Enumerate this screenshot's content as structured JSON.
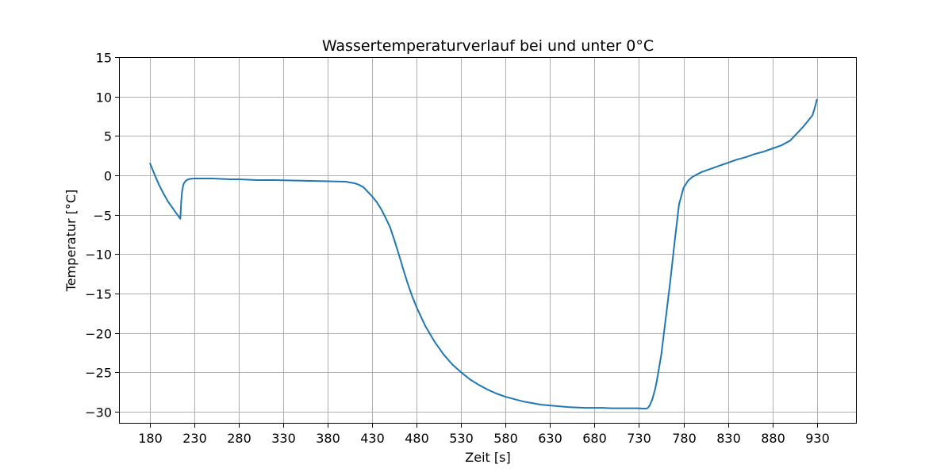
{
  "chart_data": {
    "type": "line",
    "title": "Wassertemperaturverlauf bei und unter 0°C",
    "xlabel": "Zeit [s]",
    "ylabel": "Temperatur [°C]",
    "xlim": [
      145,
      975
    ],
    "ylim": [
      -31.5,
      15
    ],
    "xticks": [
      180,
      230,
      280,
      330,
      380,
      430,
      480,
      530,
      580,
      630,
      680,
      730,
      780,
      830,
      880,
      930
    ],
    "yticks": [
      15,
      10,
      5,
      0,
      -5,
      -10,
      -15,
      -20,
      -25,
      -30
    ],
    "ytick_labels": [
      "15",
      "10",
      "5",
      "0",
      "−5",
      "−10",
      "−15",
      "−20",
      "−25",
      "−30"
    ],
    "grid": true,
    "series_color": "#1f77b4",
    "series": [
      {
        "x": [
          180,
          185,
          190,
          195,
          200,
          205,
          210,
          214,
          215,
          216,
          217,
          218,
          220,
          222,
          225,
          230,
          240,
          250,
          260,
          270,
          280,
          290,
          300,
          320,
          340,
          360,
          380,
          400,
          405,
          410,
          415,
          420,
          425,
          430,
          435,
          440,
          445,
          450,
          455,
          460,
          465,
          470,
          475,
          480,
          490,
          500,
          510,
          520,
          530,
          540,
          550,
          560,
          570,
          580,
          590,
          600,
          610,
          620,
          630,
          640,
          650,
          660,
          670,
          680,
          690,
          700,
          710,
          720,
          730,
          735,
          738,
          740,
          742,
          745,
          748,
          750,
          755,
          760,
          765,
          770,
          775,
          780,
          785,
          790,
          800,
          810,
          820,
          830,
          840,
          850,
          860,
          870,
          880,
          890,
          900,
          905,
          910,
          915,
          920,
          925,
          927,
          929,
          930
        ],
        "y": [
          1.5,
          0.1,
          -1.2,
          -2.3,
          -3.3,
          -4.1,
          -4.9,
          -5.5,
          -3.3,
          -2.0,
          -1.4,
          -1.0,
          -0.7,
          -0.55,
          -0.45,
          -0.4,
          -0.4,
          -0.4,
          -0.45,
          -0.5,
          -0.5,
          -0.55,
          -0.6,
          -0.6,
          -0.65,
          -0.7,
          -0.75,
          -0.8,
          -0.9,
          -1.0,
          -1.2,
          -1.5,
          -2.1,
          -2.7,
          -3.4,
          -4.3,
          -5.4,
          -6.6,
          -8.3,
          -10.1,
          -12.0,
          -13.8,
          -15.4,
          -16.8,
          -19.2,
          -21.1,
          -22.7,
          -24.0,
          -25.0,
          -25.9,
          -26.6,
          -27.2,
          -27.7,
          -28.1,
          -28.4,
          -28.7,
          -28.9,
          -29.1,
          -29.2,
          -29.3,
          -29.4,
          -29.45,
          -29.5,
          -29.5,
          -29.5,
          -29.55,
          -29.55,
          -29.55,
          -29.55,
          -29.6,
          -29.6,
          -29.5,
          -29.2,
          -28.4,
          -27.2,
          -26.1,
          -22.8,
          -18.2,
          -13.6,
          -8.5,
          -3.7,
          -1.6,
          -0.7,
          -0.2,
          0.4,
          0.8,
          1.2,
          1.6,
          2.0,
          2.3,
          2.7,
          3.0,
          3.4,
          3.8,
          4.4,
          5.0,
          5.6,
          6.2,
          6.9,
          7.6,
          8.3,
          9.1,
          9.6
        ]
      }
    ]
  }
}
